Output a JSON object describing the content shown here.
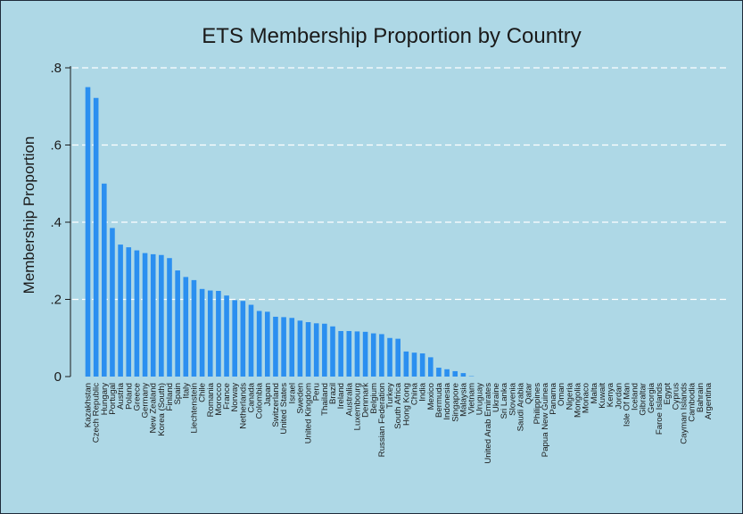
{
  "chart_data": {
    "type": "bar",
    "title": "ETS Membership Proportion by Country",
    "xlabel": "",
    "ylabel": "Membership Proportion",
    "ylim": [
      0,
      0.8
    ],
    "yticks": [
      0,
      0.2,
      0.4,
      0.6,
      0.8
    ],
    "ytick_labels": [
      "0",
      ".2",
      ".4",
      ".6",
      ".8"
    ],
    "grid": "dashed horizontal at .2, .4, .6, .8",
    "bar_color": "#2b8ff0",
    "background_color": "#aed8e6",
    "categories": [
      "Kazakhstan",
      "Czech Republic",
      "Hungary",
      "Portugal",
      "Austria",
      "Poland",
      "Greece",
      "Germany",
      "New Zealand",
      "Korea (South)",
      "Finland",
      "Spain",
      "Italy",
      "Liechtenstein",
      "Chile",
      "Romania",
      "Morocco",
      "France",
      "Norway",
      "Netherlands",
      "Canada",
      "Colombia",
      "Japan",
      "Switzerland",
      "United States",
      "Israel",
      "Sweden",
      "United Kingdom",
      "Peru",
      "Thailand",
      "Brazil",
      "Ireland",
      "Australia",
      "Luxembourg",
      "Denmark",
      "Belgium",
      "Russian Federation",
      "Turkey",
      "South Africa",
      "Hong Kong",
      "China",
      "India",
      "Mexico",
      "Bermuda",
      "Indonesia",
      "Singapore",
      "Malaysia",
      "Vietnam",
      "Uruguay",
      "United Arab Emirates",
      "Ukraine",
      "Sri Lanka",
      "Slovenia",
      "Saudi Arabia",
      "Qatar",
      "Philippines",
      "Papua New Guinea",
      "Panama",
      "Oman",
      "Nigeria",
      "Mongolia",
      "Monaco",
      "Malta",
      "Kuwait",
      "Kenya",
      "Jordan",
      "Isle Of Man",
      "Iceland",
      "Gibraltar",
      "Georgia",
      "Faroe Islands",
      "Egypt",
      "Cyprus",
      "Cayman Islands",
      "Cambodia",
      "Bahrain",
      "Argentina"
    ],
    "values": [
      0.75,
      0.722,
      0.5,
      0.385,
      0.342,
      0.335,
      0.327,
      0.32,
      0.317,
      0.315,
      0.307,
      0.275,
      0.258,
      0.25,
      0.227,
      0.223,
      0.222,
      0.21,
      0.198,
      0.196,
      0.186,
      0.17,
      0.168,
      0.155,
      0.154,
      0.152,
      0.145,
      0.141,
      0.138,
      0.137,
      0.13,
      0.118,
      0.118,
      0.117,
      0.116,
      0.112,
      0.11,
      0.1,
      0.098,
      0.065,
      0.062,
      0.06,
      0.05,
      0.023,
      0.019,
      0.014,
      0.009,
      0.001,
      0,
      0,
      0,
      0,
      0,
      0,
      0,
      0,
      0,
      0,
      0,
      0,
      0,
      0,
      0,
      0,
      0,
      0,
      0,
      0,
      0,
      0,
      0,
      0,
      0,
      0,
      0,
      0,
      0
    ]
  }
}
